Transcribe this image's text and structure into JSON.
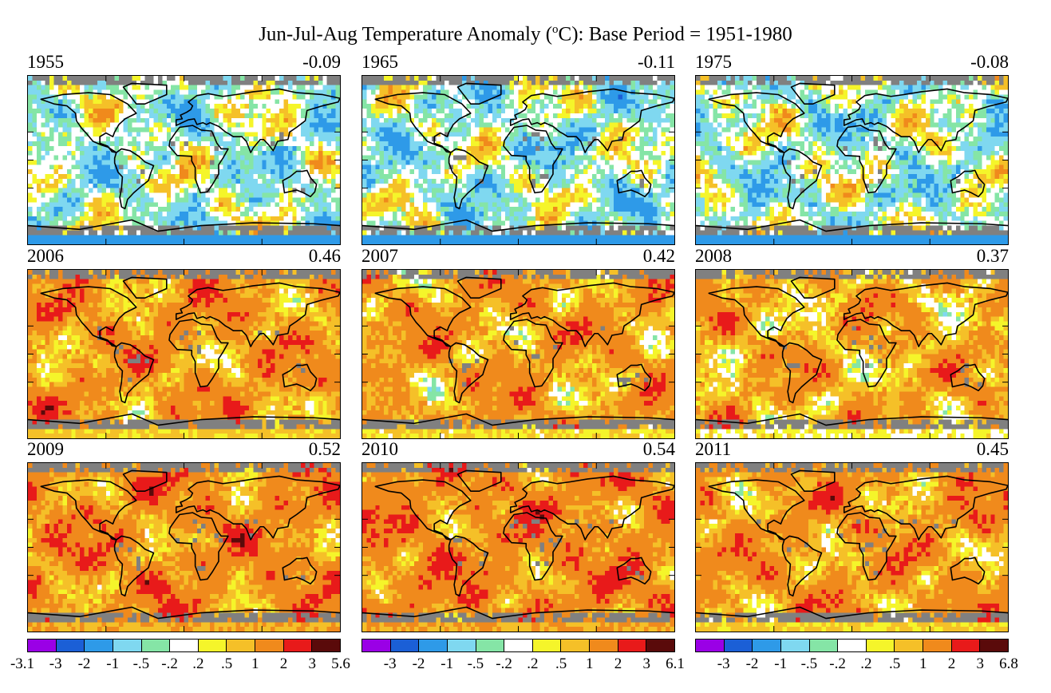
{
  "title": {
    "before_sup": "Jun-Jul-Aug Temperature Anomaly (",
    "sup": "o",
    "after_sup": "C): Base Period = 1951-1980"
  },
  "palette": [
    "#9a00e6",
    "#1b5fd6",
    "#2e9ae8",
    "#7fd8f0",
    "#85e5a6",
    "#ffffff",
    "#f5f52a",
    "#f5c028",
    "#f08a1c",
    "#e81a1a",
    "#5a0a0a"
  ],
  "no_data_color": "#808080",
  "panels": [
    {
      "year": "1955",
      "global_mean": "-0.09",
      "bias": -0.09
    },
    {
      "year": "1965",
      "global_mean": "-0.11",
      "bias": -0.11
    },
    {
      "year": "1975",
      "global_mean": "-0.08",
      "bias": -0.08
    },
    {
      "year": "2006",
      "global_mean": "0.46",
      "bias": 0.46
    },
    {
      "year": "2007",
      "global_mean": "0.42",
      "bias": 0.42
    },
    {
      "year": "2008",
      "global_mean": "0.37",
      "bias": 0.37
    },
    {
      "year": "2009",
      "global_mean": "0.52",
      "bias": 0.52
    },
    {
      "year": "2010",
      "global_mean": "0.54",
      "bias": 0.54
    },
    {
      "year": "2011",
      "global_mean": "0.45",
      "bias": 0.45
    }
  ],
  "colorbars": [
    {
      "labels": [
        "-3.1",
        "-3",
        "-2",
        "-1",
        "-.5",
        "-.2",
        ".2",
        ".5",
        "1",
        "2",
        "3",
        "5.6"
      ]
    },
    {
      "labels": [
        "-3",
        "-2",
        "-1",
        "-.5",
        "-.2",
        ".2",
        ".5",
        "1",
        "2",
        "3",
        "6.1"
      ]
    },
    {
      "labels": [
        "-3",
        "-2",
        "-1",
        "-.5",
        "-.2",
        ".2",
        ".5",
        "1",
        "2",
        "3",
        "6.8"
      ]
    }
  ]
}
